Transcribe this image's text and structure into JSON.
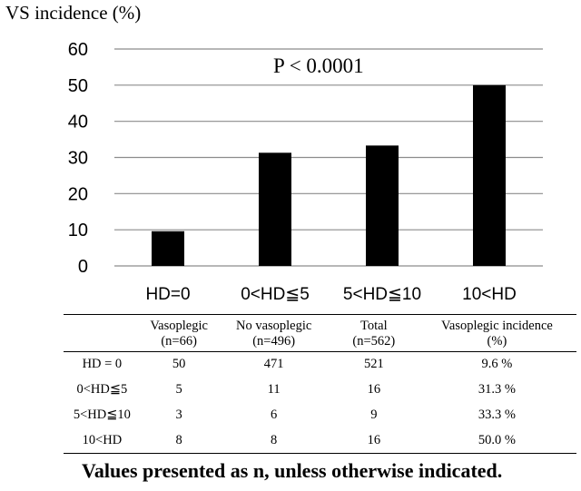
{
  "chart_data": {
    "type": "bar",
    "ylabel": "VS incidence  (%)",
    "annotation": "P < 0.0001",
    "categories": [
      "HD=0",
      "0<HD≦5",
      "5<HD≦10",
      "10<HD"
    ],
    "values": [
      9.6,
      31.3,
      33.3,
      50.0
    ],
    "ylim": [
      0,
      60
    ],
    "yticks": [
      0,
      10,
      20,
      30,
      40,
      50,
      60
    ],
    "grid": true,
    "bar_color": "#000000"
  },
  "table": {
    "headers": [
      {
        "line1": "",
        "line2": ""
      },
      {
        "line1": "Vasoplegic",
        "line2": "(n=66)"
      },
      {
        "line1": "No vasoplegic",
        "line2": "(n=496)"
      },
      {
        "line1": "Total",
        "line2": "(n=562)"
      },
      {
        "line1": "Vasoplegic incidence",
        "line2": "(%)"
      }
    ],
    "rows": [
      [
        "HD = 0",
        "50",
        "471",
        "521",
        "9.6 %"
      ],
      [
        "0<HD≦5",
        "5",
        "11",
        "16",
        "31.3 %"
      ],
      [
        "5<HD≦10",
        "3",
        "6",
        "9",
        "33.3 %"
      ],
      [
        "10<HD",
        "8",
        "8",
        "16",
        "50.0 %"
      ]
    ]
  },
  "footnote": "Values presented as n, unless otherwise indicated."
}
